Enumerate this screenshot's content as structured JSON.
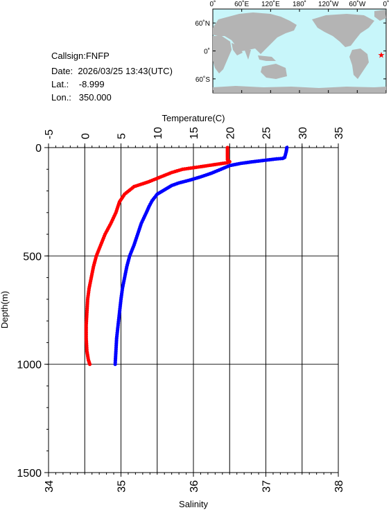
{
  "station": {
    "callsign_label": "Callsign:",
    "callsign": "FNFP",
    "date_label": "Date:",
    "date": "2026/03/25 13:43(UTC)",
    "lat_label": "Lat.:",
    "lat": "-8.999",
    "lon_label": "Lon.:",
    "lon": "350.000"
  },
  "map": {
    "top_labels": [
      "0˚",
      "60˚E",
      "120˚E",
      "180˚",
      "120˚W",
      "60˚W",
      "0˚"
    ],
    "left_labels": [
      "60˚N",
      "0˚",
      "60˚S"
    ],
    "ocean_color": "#c8f6fa",
    "land_color": "#b4b4b4",
    "marker_color": "#ff0000",
    "marker_symbol": "★",
    "marker": {
      "lon": 350.0,
      "lat": -8.999
    }
  },
  "chart_data": {
    "type": "scatter",
    "x_top": {
      "label": "Temperature(C)",
      "range": [
        -5,
        35
      ],
      "ticks": [
        -5,
        0,
        5,
        10,
        15,
        20,
        25,
        30,
        35
      ]
    },
    "x_bottom": {
      "label": "Salinity",
      "range": [
        34,
        38
      ],
      "ticks": [
        34,
        35,
        36,
        37,
        38
      ]
    },
    "y": {
      "label": "Depth(m)",
      "range": [
        0,
        1500
      ],
      "inverted": true,
      "ticks": [
        0,
        500,
        1000,
        1500
      ]
    },
    "grid": true,
    "series": [
      {
        "axis": "temperature",
        "color": "#0000ff",
        "points": [
          [
            27.9,
            0
          ],
          [
            27.8,
            20
          ],
          [
            27.6,
            45
          ],
          [
            27.3,
            50
          ],
          [
            26.5,
            52
          ],
          [
            25.0,
            58
          ],
          [
            23.0,
            66
          ],
          [
            21.5,
            73
          ],
          [
            20.0,
            83
          ],
          [
            18.8,
            100
          ],
          [
            17.5,
            118
          ],
          [
            16.0,
            135
          ],
          [
            14.5,
            150
          ],
          [
            13.0,
            163
          ],
          [
            12.0,
            175
          ],
          [
            11.0,
            195
          ],
          [
            10.0,
            215
          ],
          [
            9.3,
            245
          ],
          [
            8.9,
            270
          ],
          [
            8.5,
            300
          ],
          [
            7.8,
            350
          ],
          [
            7.3,
            400
          ],
          [
            6.8,
            450
          ],
          [
            6.2,
            500
          ],
          [
            5.8,
            550
          ],
          [
            5.5,
            600
          ],
          [
            5.2,
            650
          ],
          [
            5.0,
            700
          ],
          [
            4.8,
            760
          ],
          [
            4.6,
            820
          ],
          [
            4.4,
            880
          ],
          [
            4.3,
            940
          ],
          [
            4.2,
            1000
          ]
        ]
      },
      {
        "axis": "salinity",
        "color": "#ff0000",
        "points": [
          [
            36.47,
            0
          ],
          [
            36.47,
            20
          ],
          [
            36.47,
            40
          ],
          [
            36.47,
            55
          ],
          [
            36.5,
            65
          ],
          [
            36.46,
            70
          ],
          [
            36.3,
            78
          ],
          [
            36.1,
            88
          ],
          [
            35.85,
            100
          ],
          [
            35.7,
            115
          ],
          [
            35.55,
            135
          ],
          [
            35.38,
            158
          ],
          [
            35.18,
            180
          ],
          [
            35.05,
            215
          ],
          [
            34.98,
            250
          ],
          [
            34.93,
            300
          ],
          [
            34.86,
            350
          ],
          [
            34.78,
            400
          ],
          [
            34.72,
            450
          ],
          [
            34.66,
            500
          ],
          [
            34.62,
            550
          ],
          [
            34.59,
            600
          ],
          [
            34.56,
            650
          ],
          [
            34.54,
            700
          ],
          [
            34.53,
            760
          ],
          [
            34.52,
            820
          ],
          [
            34.52,
            880
          ],
          [
            34.53,
            940
          ],
          [
            34.55,
            980
          ],
          [
            34.57,
            1000
          ]
        ]
      }
    ]
  }
}
